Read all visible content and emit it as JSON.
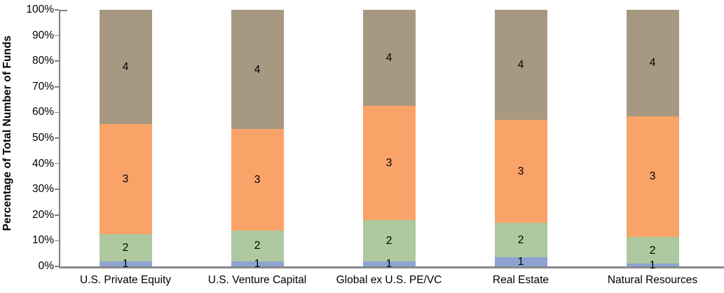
{
  "chart_data": {
    "type": "bar",
    "variant": "stacked-100-percent",
    "title": "",
    "xlabel": "",
    "ylabel": "Percentage of Total Number of Funds",
    "categories": [
      "U.S. Private Equity",
      "U.S. Venture Capital",
      "Global ex U.S. PE/VC",
      "Real Estate",
      "Natural Resources"
    ],
    "series": [
      {
        "name": "1",
        "color": "#8CA3D1",
        "values": [
          2,
          2,
          2,
          3.5,
          1
        ]
      },
      {
        "name": "2",
        "color": "#AEC8A0",
        "values": [
          10.5,
          12,
          16,
          13.5,
          10.5
        ]
      },
      {
        "name": "3",
        "color": "#F9A369",
        "values": [
          43,
          39.5,
          44.5,
          40,
          47
        ]
      },
      {
        "name": "4",
        "color": "#A79981",
        "values": [
          44.5,
          46.5,
          37.5,
          43,
          41.5
        ]
      }
    ],
    "yticks": [
      "0%",
      "10%",
      "20%",
      "30%",
      "40%",
      "50%",
      "60%",
      "70%",
      "80%",
      "90%",
      "100%"
    ],
    "ylim": [
      0,
      100
    ],
    "legend_position": "none",
    "gridlines": "off",
    "axis_color": "#7F7F7F",
    "label_color": "#000000"
  }
}
